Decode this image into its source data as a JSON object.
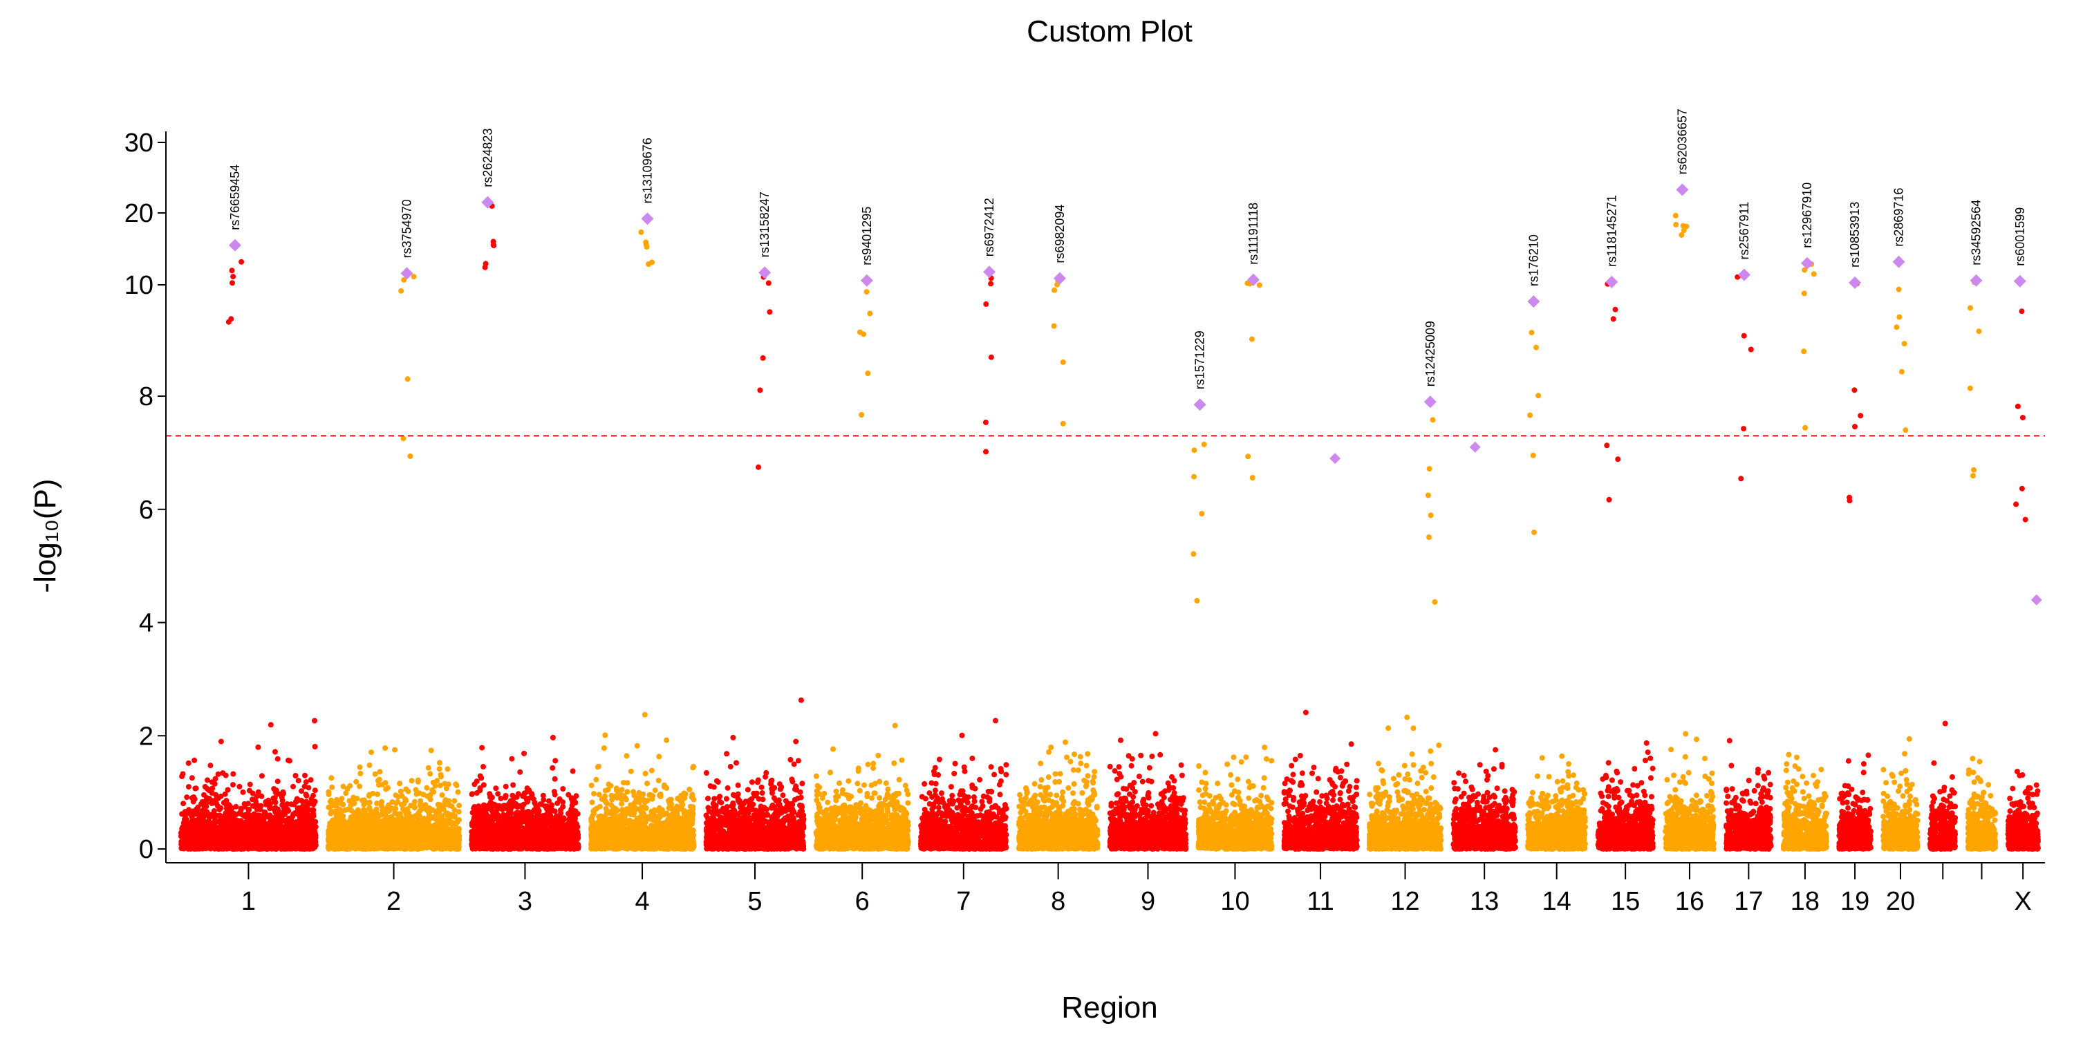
{
  "chart_data": {
    "type": "scatter",
    "subtype": "manhattan",
    "title": "Custom Plot",
    "xlabel": "Region",
    "ylabel": "-log₁₀(P)",
    "y_axis_scale": "piecewise: linear 0-8, compressed 8-30",
    "y_ticks": [
      0,
      2,
      4,
      6,
      8,
      10,
      20,
      30
    ],
    "ylim": [
      0,
      31
    ],
    "significance_threshold": 7.3,
    "threshold_line_color": "#ff0000",
    "colors": {
      "odd_regions": "#ff0000",
      "even_regions": "#ffa500",
      "highlight": "#cc88ee"
    },
    "regions": [
      {
        "label": "1",
        "length": 250,
        "gap_points": 1
      },
      {
        "label": "2",
        "length": 243
      },
      {
        "label": "3",
        "length": 198
      },
      {
        "label": "4",
        "length": 191
      },
      {
        "label": "5",
        "length": 181
      },
      {
        "label": "6",
        "length": 171
      },
      {
        "label": "7",
        "length": 159
      },
      {
        "label": "8",
        "length": 146
      },
      {
        "label": "9",
        "length": 141
      },
      {
        "label": "10",
        "length": 136
      },
      {
        "label": "11",
        "length": 135
      },
      {
        "label": "12",
        "length": 133
      },
      {
        "label": "13",
        "length": 115
      },
      {
        "label": "14",
        "length": 107
      },
      {
        "label": "15",
        "length": 102
      },
      {
        "label": "16",
        "length": 90
      },
      {
        "label": "17",
        "length": 83
      },
      {
        "label": "18",
        "length": 80
      },
      {
        "label": "19",
        "length": 59
      },
      {
        "label": "20",
        "length": 64
      },
      {
        "label": "",
        "length": 47
      },
      {
        "label": "",
        "length": 51
      },
      {
        "label": "X",
        "length": 56
      }
    ],
    "lead_snps": [
      {
        "rsid": "rs76659454",
        "region": "1",
        "pos": 0.4,
        "logp": 15.5
      },
      {
        "rsid": "rs3754970",
        "region": "2",
        "pos": 0.6,
        "logp": 11.6
      },
      {
        "rsid": "rs2624823",
        "region": "3",
        "pos": 0.15,
        "logp": 21.5
      },
      {
        "rsid": "rs13109676",
        "region": "4",
        "pos": 0.55,
        "logp": 19.2
      },
      {
        "rsid": "rs13158247",
        "region": "5",
        "pos": 0.6,
        "logp": 11.7
      },
      {
        "rsid": "rs9401295",
        "region": "6",
        "pos": 0.55,
        "logp": 10.6
      },
      {
        "rsid": "rs6972412",
        "region": "7",
        "pos": 0.8,
        "logp": 11.8
      },
      {
        "rsid": "rs6982094",
        "region": "8",
        "pos": 0.52,
        "logp": 10.9
      },
      {
        "rsid": "rs1571229",
        "region": "10",
        "pos": 0.02,
        "logp": 7.85
      },
      {
        "rsid": "rs11191118",
        "region": "10",
        "pos": 0.75,
        "logp": 10.7
      },
      {
        "rsid": "rs12425009",
        "region": "12",
        "pos": 0.85,
        "logp": 7.9
      },
      {
        "rsid": "rs176210",
        "region": "14",
        "pos": 0.1,
        "logp": 9.7
      },
      {
        "rsid": "rs118145271",
        "region": "15",
        "pos": 0.25,
        "logp": 10.4
      },
      {
        "rsid": "rs62036657",
        "region": "16",
        "pos": 0.35,
        "logp": 23.3
      },
      {
        "rsid": "rs2567911",
        "region": "17",
        "pos": 0.4,
        "logp": 11.4
      },
      {
        "rsid": "rs12967910",
        "region": "18",
        "pos": 0.55,
        "logp": 13.0
      },
      {
        "rsid": "rs10853913",
        "region": "19",
        "pos": 0.5,
        "logp": 10.3
      },
      {
        "rsid": "rs2869716",
        "region": "20",
        "pos": 0.45,
        "logp": 13.2
      },
      {
        "rsid": "rs34592564",
        "region": "",
        "pos": 0.3,
        "logp": 10.6,
        "region_index": 21
      },
      {
        "rsid": "rs6001599",
        "region": "",
        "pos": 0.4,
        "logp": 10.5,
        "region_index": 22
      }
    ],
    "extra_highlights": [
      {
        "region": "11",
        "pos": 0.7,
        "logp": 6.9
      },
      {
        "region": "13",
        "pos": 0.35,
        "logp": 7.1
      },
      {
        "region": "X",
        "pos": 0.95,
        "logp": 4.4
      }
    ],
    "grid": false,
    "legend": "none"
  }
}
